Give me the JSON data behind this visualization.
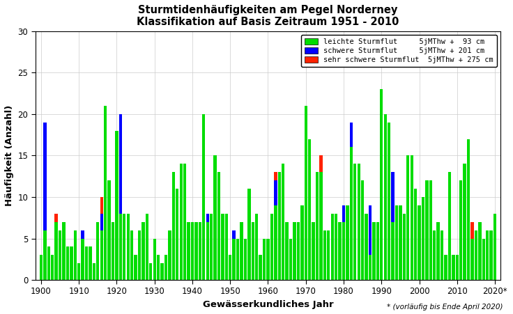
{
  "title_line1": "Sturmtidenhäufigkeiten am Pegel Norderney",
  "title_line2": "Klassifikation auf Basis Zeitraum 1951 - 2010",
  "xlabel": "Gewässerkundliches Jahr",
  "ylabel": "Häufigkeit (Anzahl)",
  "footnote": "* (vorläufig bis Ende April 2020)",
  "ylim": [
    0,
    30
  ],
  "yticks": [
    0,
    5,
    10,
    15,
    20,
    25,
    30
  ],
  "color_green": "#00DD00",
  "color_blue": "#0000FF",
  "color_red": "#FF2200",
  "legend_entries": [
    [
      "leichte Sturmflut",
      "5jMThw +  93 cm"
    ],
    [
      "schwere Sturmflut",
      "5jMThw + 201 cm"
    ],
    [
      "sehr schwere Sturmflut",
      "5jMThw + 275 cm"
    ]
  ],
  "years": [
    1900,
    1901,
    1902,
    1903,
    1904,
    1905,
    1906,
    1907,
    1908,
    1909,
    1910,
    1911,
    1912,
    1913,
    1914,
    1915,
    1916,
    1917,
    1918,
    1919,
    1920,
    1921,
    1922,
    1923,
    1924,
    1925,
    1926,
    1927,
    1928,
    1929,
    1930,
    1931,
    1932,
    1933,
    1934,
    1935,
    1936,
    1937,
    1938,
    1939,
    1940,
    1941,
    1942,
    1943,
    1944,
    1945,
    1946,
    1947,
    1948,
    1949,
    1950,
    1951,
    1952,
    1953,
    1954,
    1955,
    1956,
    1957,
    1958,
    1959,
    1960,
    1961,
    1962,
    1963,
    1964,
    1965,
    1966,
    1967,
    1968,
    1969,
    1970,
    1971,
    1972,
    1973,
    1974,
    1975,
    1976,
    1977,
    1978,
    1979,
    1980,
    1981,
    1982,
    1983,
    1984,
    1985,
    1986,
    1987,
    1988,
    1989,
    1990,
    1991,
    1992,
    1993,
    1994,
    1995,
    1996,
    1997,
    1998,
    1999,
    2000,
    2001,
    2002,
    2003,
    2004,
    2005,
    2006,
    2007,
    2008,
    2009,
    2010,
    2011,
    2012,
    2013,
    2014,
    2015,
    2016,
    2017,
    2018,
    2019,
    2020
  ],
  "green": [
    3,
    6,
    4,
    3,
    7,
    6,
    7,
    4,
    4,
    6,
    2,
    5,
    4,
    4,
    2,
    7,
    6,
    21,
    12,
    7,
    18,
    8,
    8,
    8,
    6,
    3,
    6,
    7,
    8,
    2,
    5,
    3,
    2,
    3,
    6,
    13,
    11,
    14,
    14,
    7,
    7,
    7,
    7,
    20,
    7,
    8,
    15,
    13,
    8,
    8,
    3,
    5,
    5,
    7,
    5,
    11,
    7,
    8,
    3,
    5,
    5,
    8,
    9,
    13,
    14,
    7,
    5,
    7,
    7,
    9,
    21,
    17,
    7,
    13,
    13,
    6,
    6,
    8,
    8,
    7,
    7,
    9,
    16,
    14,
    14,
    12,
    8,
    3,
    7,
    7,
    23,
    20,
    19,
    7,
    9,
    9,
    8,
    15,
    15,
    11,
    9,
    10,
    12,
    12,
    6,
    7,
    6,
    3,
    13,
    3,
    3,
    12,
    14,
    17,
    5,
    6,
    7,
    5,
    6,
    6,
    8
  ],
  "blue": [
    0,
    13,
    0,
    0,
    0,
    0,
    0,
    0,
    0,
    0,
    0,
    1,
    0,
    0,
    0,
    0,
    2,
    0,
    0,
    0,
    0,
    12,
    0,
    0,
    0,
    0,
    0,
    0,
    0,
    0,
    0,
    0,
    0,
    0,
    0,
    0,
    0,
    0,
    0,
    0,
    0,
    0,
    0,
    0,
    1,
    0,
    0,
    0,
    0,
    0,
    0,
    1,
    0,
    0,
    0,
    0,
    0,
    0,
    0,
    0,
    0,
    0,
    3,
    0,
    0,
    0,
    0,
    0,
    0,
    0,
    0,
    0,
    0,
    0,
    0,
    0,
    0,
    0,
    0,
    0,
    2,
    0,
    3,
    0,
    0,
    0,
    0,
    6,
    0,
    0,
    0,
    0,
    0,
    6,
    0,
    0,
    0,
    0,
    0,
    0,
    0,
    0,
    0,
    0,
    0,
    0,
    0,
    0,
    0,
    0,
    0,
    0,
    0,
    0,
    0,
    0,
    0,
    0,
    0,
    0,
    0
  ],
  "red": [
    0,
    0,
    0,
    0,
    1,
    0,
    0,
    0,
    0,
    0,
    0,
    0,
    0,
    0,
    0,
    0,
    2,
    0,
    0,
    0,
    0,
    0,
    0,
    0,
    0,
    0,
    0,
    0,
    0,
    0,
    0,
    0,
    0,
    0,
    0,
    0,
    0,
    0,
    0,
    0,
    0,
    0,
    0,
    0,
    0,
    0,
    0,
    0,
    0,
    0,
    0,
    0,
    0,
    0,
    0,
    0,
    0,
    0,
    0,
    0,
    0,
    0,
    1,
    0,
    0,
    0,
    0,
    0,
    0,
    0,
    0,
    0,
    0,
    0,
    2,
    0,
    0,
    0,
    0,
    0,
    0,
    0,
    0,
    0,
    0,
    0,
    0,
    0,
    0,
    0,
    0,
    0,
    0,
    0,
    0,
    0,
    0,
    0,
    0,
    0,
    0,
    0,
    0,
    0,
    0,
    0,
    0,
    0,
    0,
    0,
    0,
    0,
    0,
    0,
    2,
    0,
    0,
    0,
    0,
    0,
    0
  ]
}
